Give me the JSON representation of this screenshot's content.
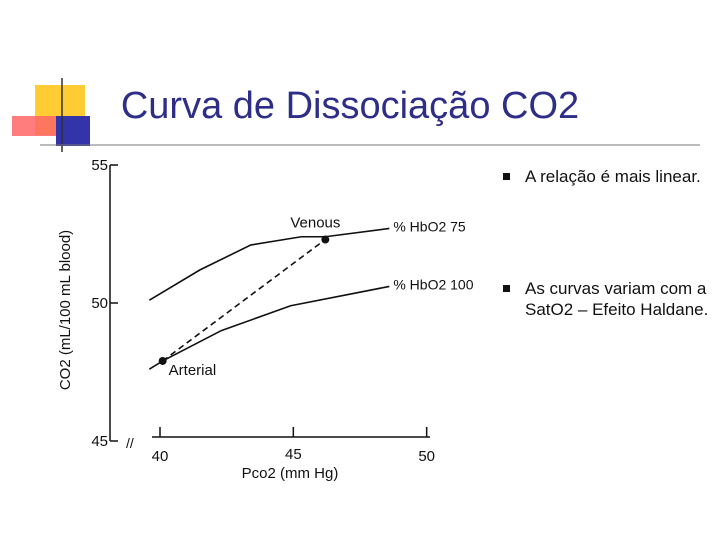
{
  "slide": {
    "title": "Curva de Dissociação CO2",
    "bullets": [
      "A relação é mais linear.",
      "As curvas variam com a SatO2 – Efeito Haldane."
    ]
  },
  "chart_data": {
    "type": "line",
    "ylabel": "CO2 (mL/100 mL blood)",
    "xlabel": "Pco2 (mm Hg)",
    "xlim": [
      38.5,
      50.5
    ],
    "xticks": [
      40,
      45,
      50
    ],
    "ylim": [
      45,
      55
    ],
    "yticks": [
      45,
      50,
      55
    ],
    "series": [
      {
        "name": "% HbO2 75",
        "color": "#111111",
        "x": [
          39.6,
          41.5,
          43.4,
          45.3,
          46.2,
          48.6
        ],
        "values": [
          50.1,
          51.2,
          52.1,
          52.4,
          52.4,
          52.7
        ]
      },
      {
        "name": "% HbO2 100",
        "color": "#111111",
        "x": [
          39.6,
          40.1,
          42.3,
          44.9,
          48.6
        ],
        "values": [
          47.6,
          47.9,
          49.0,
          49.9,
          50.6
        ]
      }
    ],
    "points": [
      {
        "label": "Arterial",
        "x": 40.1,
        "y": 47.9
      },
      {
        "label": "Venous",
        "x": 46.2,
        "y": 52.3
      }
    ]
  }
}
